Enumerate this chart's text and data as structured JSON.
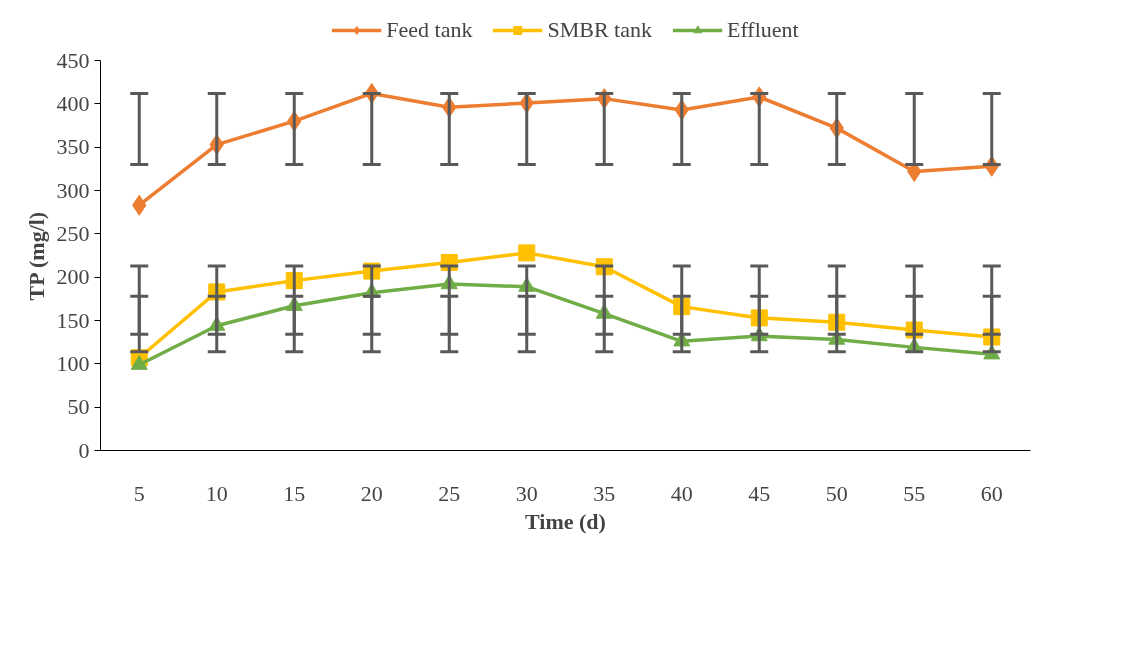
{
  "chart_data": {
    "type": "line",
    "xlabel": "Time (d)",
    "ylabel": "TP (mg/l)",
    "categories": [
      "5",
      "10",
      "15",
      "20",
      "25",
      "30",
      "35",
      "40",
      "45",
      "50",
      "55",
      "60"
    ],
    "ylim": [
      0,
      450
    ],
    "yticks": [
      0,
      50,
      100,
      150,
      200,
      250,
      300,
      350,
      400,
      450
    ],
    "grid": false,
    "legend": "top",
    "line_style": "solid",
    "series": [
      {
        "name": "Feed tank",
        "color": "#ed7d31",
        "marker": "diamond",
        "values": [
          283,
          353,
          380,
          412,
          396,
          401,
          406,
          393,
          408,
          372,
          322,
          328
        ],
        "errors": [
          [
            330,
            412
          ],
          [
            330,
            412
          ],
          [
            330,
            412
          ],
          [
            330,
            412
          ],
          [
            330,
            412
          ],
          [
            330,
            412
          ],
          [
            330,
            412
          ],
          [
            330,
            412
          ],
          [
            330,
            412
          ],
          [
            330,
            412
          ],
          [
            330,
            412
          ],
          [
            330,
            412
          ]
        ]
      },
      {
        "name": "SMBR tank",
        "color": "#ffc000",
        "marker": "square",
        "values": [
          107,
          183,
          196,
          207,
          217,
          228,
          212,
          166,
          153,
          148,
          139,
          131
        ],
        "errors": [
          [
            134,
            213
          ],
          [
            134,
            213
          ],
          [
            134,
            213
          ],
          [
            134,
            213
          ],
          [
            134,
            213
          ],
          [
            134,
            213
          ],
          [
            134,
            213
          ],
          [
            134,
            213
          ],
          [
            134,
            213
          ],
          [
            134,
            213
          ],
          [
            134,
            213
          ],
          [
            134,
            213
          ]
        ]
      },
      {
        "name": "Effluent",
        "color": "#70ad47",
        "marker": "triangle",
        "values": [
          99,
          144,
          167,
          182,
          192,
          189,
          158,
          126,
          132,
          128,
          119,
          111
        ],
        "errors": [
          [
            114,
            178
          ],
          [
            114,
            178
          ],
          [
            114,
            178
          ],
          [
            114,
            178
          ],
          [
            114,
            178
          ],
          [
            114,
            178
          ],
          [
            114,
            178
          ],
          [
            114,
            178
          ],
          [
            114,
            178
          ],
          [
            114,
            178
          ],
          [
            114,
            178
          ],
          [
            114,
            178
          ]
        ]
      }
    ]
  }
}
